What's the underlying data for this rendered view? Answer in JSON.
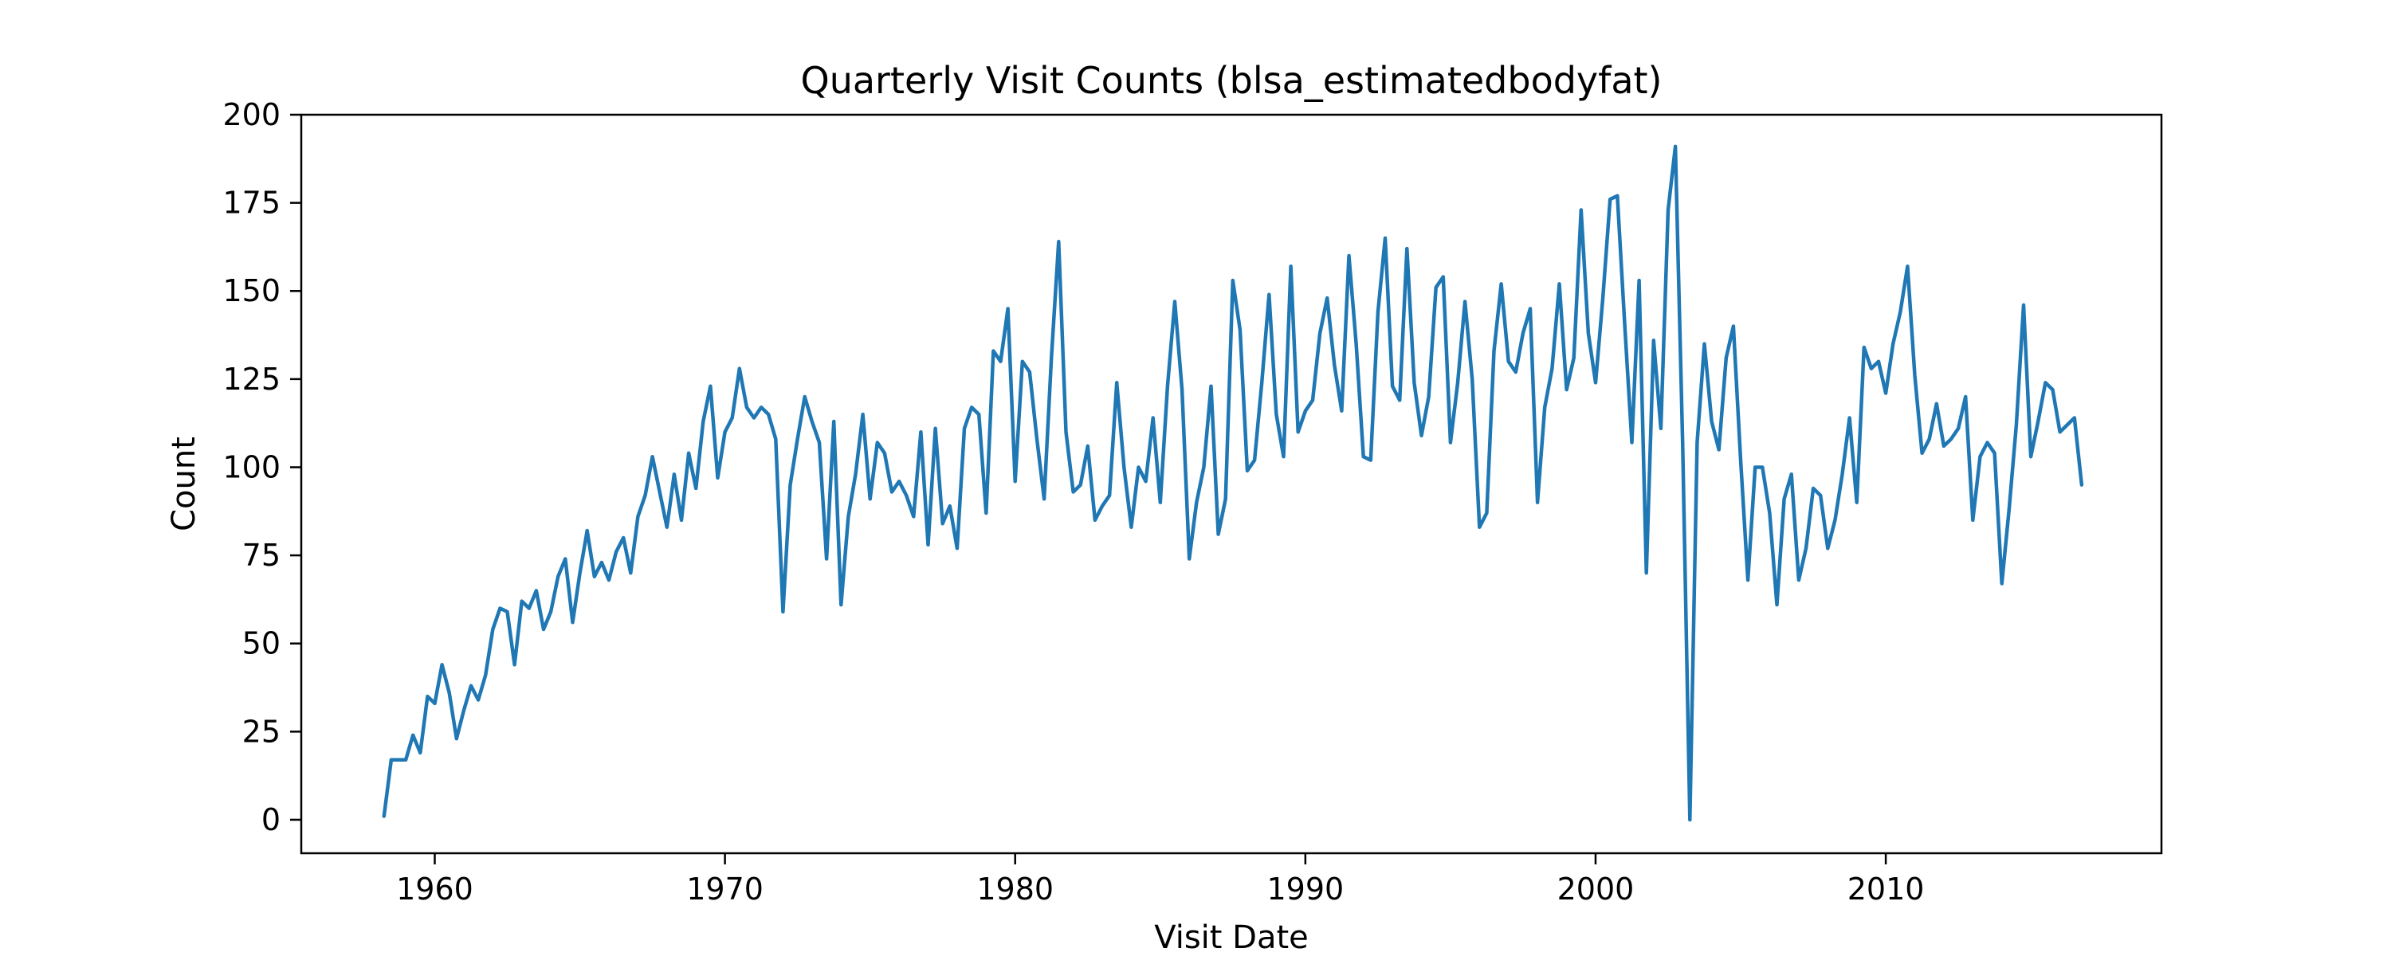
{
  "chart_data": {
    "type": "line",
    "title": "Quarterly Visit Counts (blsa_estimatedbodyfat)",
    "xlabel": "Visit Date",
    "ylabel": "Count",
    "xlim": [
      1955.4,
      2019.5
    ],
    "ylim": [
      -9.5,
      200
    ],
    "x_ticks": [
      1960,
      1970,
      1980,
      1990,
      2000,
      2010
    ],
    "y_ticks": [
      0,
      25,
      50,
      75,
      100,
      125,
      150,
      175,
      200
    ],
    "grid": false,
    "legend": "none",
    "line_color": "#1f77b4",
    "series": [
      {
        "x": [
          1958.25,
          1958.5,
          1958.75,
          1959.0,
          1959.25,
          1959.5,
          1959.75,
          1960.0,
          1960.25,
          1960.5,
          1960.75,
          1961.0,
          1961.25,
          1961.5,
          1961.75,
          1962.0,
          1962.25,
          1962.5,
          1962.75,
          1963.0,
          1963.25,
          1963.5,
          1963.75,
          1964.0,
          1964.25,
          1964.5,
          1964.75,
          1965.0,
          1965.25,
          1965.5,
          1965.75,
          1966.0,
          1966.25,
          1966.5,
          1966.75,
          1967.0,
          1967.25,
          1967.5,
          1967.75,
          1968.0,
          1968.25,
          1968.5,
          1968.75,
          1969.0,
          1969.25,
          1969.5,
          1969.75,
          1970.0,
          1970.25,
          1970.5,
          1970.75,
          1971.0,
          1971.25,
          1971.5,
          1971.75,
          1972.0,
          1972.25,
          1972.5,
          1972.75,
          1973.0,
          1973.25,
          1973.5,
          1973.75,
          1974.0,
          1974.25,
          1974.5,
          1974.75,
          1975.0,
          1975.25,
          1975.5,
          1975.75,
          1976.0,
          1976.25,
          1976.5,
          1976.75,
          1977.0,
          1977.25,
          1977.5,
          1977.75,
          1978.0,
          1978.25,
          1978.5,
          1978.75,
          1979.0,
          1979.25,
          1979.5,
          1979.75,
          1980.0,
          1980.25,
          1980.5,
          1980.75,
          1981.0,
          1981.25,
          1981.5,
          1981.75,
          1982.0,
          1982.25,
          1982.5,
          1982.75,
          1983.0,
          1983.25,
          1983.5,
          1983.75,
          1984.0,
          1984.25,
          1984.5,
          1984.75,
          1985.0,
          1985.25,
          1985.5,
          1985.75,
          1986.0,
          1986.25,
          1986.5,
          1986.75,
          1987.0,
          1987.25,
          1987.5,
          1987.75,
          1988.0,
          1988.25,
          1988.5,
          1988.75,
          1989.0,
          1989.25,
          1989.5,
          1989.75,
          1990.0,
          1990.25,
          1990.5,
          1990.75,
          1991.0,
          1991.25,
          1991.5,
          1991.75,
          1992.0,
          1992.25,
          1992.5,
          1992.75,
          1993.0,
          1993.25,
          1993.5,
          1993.75,
          1994.0,
          1994.25,
          1994.5,
          1994.75,
          1995.0,
          1995.25,
          1995.5,
          1995.75,
          1996.0,
          1996.25,
          1996.5,
          1996.75,
          1997.0,
          1997.25,
          1997.5,
          1997.75,
          1998.0,
          1998.25,
          1998.5,
          1998.75,
          1999.0,
          1999.25,
          1999.5,
          1999.75,
          2000.0,
          2000.25,
          2000.5,
          2000.75,
          2001.0,
          2001.25,
          2001.5,
          2001.75,
          2002.0,
          2002.25,
          2002.5,
          2002.75,
          2003.0,
          2003.25,
          2003.5,
          2003.75,
          2004.0,
          2004.25,
          2004.5,
          2004.75,
          2005.0,
          2005.25,
          2005.5,
          2005.75,
          2006.0,
          2006.25,
          2006.5,
          2006.75,
          2007.0,
          2007.25,
          2007.5,
          2007.75,
          2008.0,
          2008.25,
          2008.5,
          2008.75,
          2009.0,
          2009.25,
          2009.5,
          2009.75,
          2010.0,
          2010.25,
          2010.5,
          2010.75,
          2011.0,
          2011.25,
          2011.5,
          2011.75,
          2012.0,
          2012.25,
          2012.5,
          2012.75,
          2013.0,
          2013.25,
          2013.5,
          2013.75,
          2014.0,
          2014.25,
          2014.5,
          2014.75,
          2015.0,
          2015.25,
          2015.5,
          2015.75,
          2016.0,
          2016.25,
          2016.5,
          2016.75
        ],
        "values": [
          1,
          17,
          17,
          17,
          24,
          19,
          35,
          33,
          44,
          36,
          23,
          31,
          38,
          34,
          41,
          54,
          60,
          59,
          44,
          62,
          60,
          65,
          54,
          59,
          69,
          74,
          56,
          70,
          82,
          69,
          73,
          68,
          76,
          80,
          70,
          86,
          92,
          103,
          93,
          83,
          98,
          85,
          104,
          94,
          113,
          123,
          97,
          110,
          114,
          128,
          117,
          114,
          117,
          115,
          108,
          59,
          95,
          108,
          120,
          113,
          107,
          74,
          113,
          61,
          86,
          98,
          115,
          91,
          107,
          104,
          93,
          96,
          92,
          86,
          110,
          78,
          111,
          84,
          89,
          77,
          111,
          117,
          115,
          87,
          133,
          130,
          145,
          96,
          130,
          127,
          108,
          91,
          131,
          164,
          110,
          93,
          95,
          106,
          85,
          89,
          92,
          124,
          100,
          83,
          100,
          96,
          114,
          90,
          123,
          147,
          122,
          74,
          90,
          100,
          123,
          81,
          91,
          153,
          139,
          99,
          102,
          124,
          149,
          115,
          103,
          157,
          110,
          116,
          119,
          138,
          148,
          129,
          116,
          160,
          135,
          103,
          102,
          144,
          165,
          123,
          119,
          162,
          124,
          109,
          120,
          151,
          154,
          107,
          124,
          147,
          125,
          83,
          87,
          133,
          152,
          130,
          127,
          138,
          145,
          90,
          117,
          128,
          152,
          122,
          131,
          173,
          138,
          124,
          148,
          176,
          177,
          141,
          107,
          153,
          70,
          136,
          111,
          173,
          191,
          107,
          0,
          107,
          135,
          113,
          105,
          131,
          140,
          102,
          68,
          100,
          100,
          87,
          61,
          91,
          98,
          68,
          77,
          94,
          92,
          77,
          85,
          98,
          114,
          90,
          134,
          128,
          130,
          121,
          135,
          144,
          157,
          126,
          104,
          108,
          118,
          106,
          108,
          111,
          120,
          85,
          103,
          107,
          104,
          67,
          88,
          112,
          146,
          103,
          113,
          124,
          122,
          110,
          112,
          114,
          95
        ]
      }
    ]
  }
}
